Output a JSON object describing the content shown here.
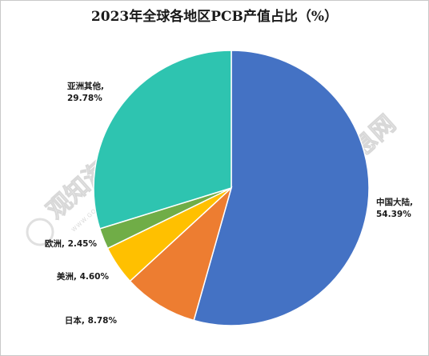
{
  "chart_data": {
    "type": "pie",
    "title": "2023年全球各地区PCB产值占比（%）",
    "categories": [
      "中国大陆",
      "日本",
      "美洲",
      "欧洲",
      "亚洲其他"
    ],
    "values": [
      54.39,
      8.78,
      4.6,
      2.45,
      29.78
    ],
    "labels": [
      "中国大陆,\n54.39%",
      "日本, 8.78%",
      "美洲, 4.60%",
      "欧洲, 2.45%",
      "亚洲其他,\n29.78%"
    ],
    "colors": [
      "#4472c4",
      "#ed7d31",
      "#ffc000",
      "#70ad47",
      "#2ec4b0"
    ],
    "start_angle_deg": 0,
    "direction": "clockwise",
    "legend": "none"
  },
  "watermark": {
    "text": "观知海内信息网",
    "sub": "WWW.GONGHAIXINXI.COM",
    "color": "#d8d8d8"
  }
}
